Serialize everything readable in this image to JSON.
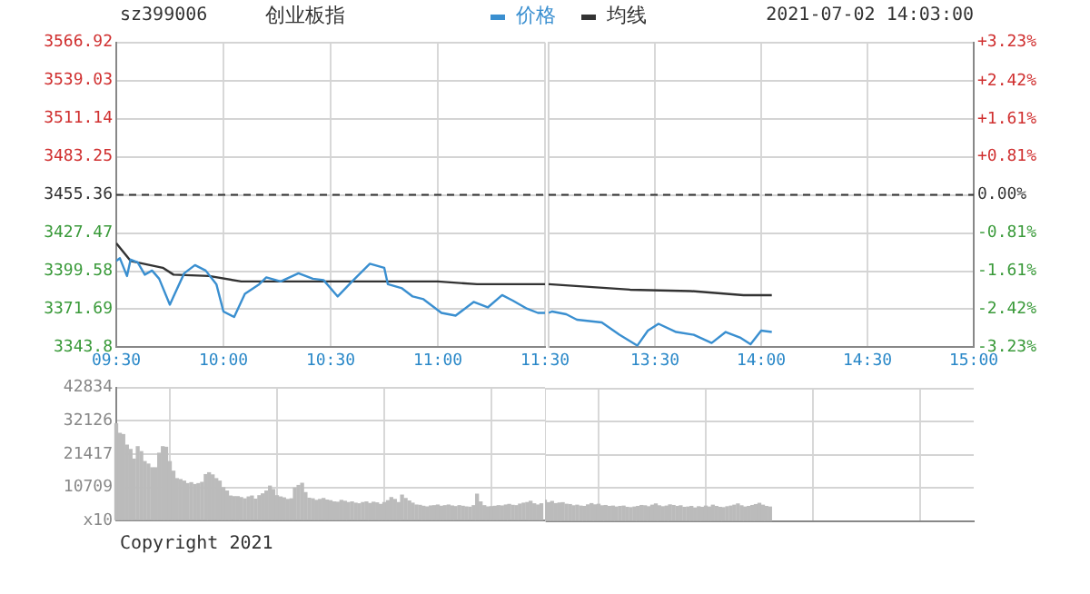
{
  "chart_data": [
    {
      "type": "line",
      "title": "创业板指",
      "subtitle": "sz399006",
      "annotations": [
        "2021-07-02 14:03:00"
      ],
      "xlim": [
        9.5,
        11.5
      ],
      "xticks": [
        {
          "value": 9.5,
          "label": "09:30"
        },
        {
          "value": 10,
          "label": "10:00"
        },
        {
          "value": 10.5,
          "label": "10:30"
        },
        {
          "value": 11,
          "label": "11:00"
        },
        {
          "value": 11.5,
          "label": "11:30"
        }
      ],
      "ylim": [
        3343.8,
        3566.92
      ],
      "yticks": [
        3343.8,
        3371.69,
        3399.58,
        3427.47,
        3455.36,
        3483.25,
        3511.14,
        3539.03,
        3566.92
      ],
      "ref_lines": [
        {
          "axis": "y",
          "value": 3455.36,
          "color": "#333333",
          "line_style": "dashed"
        }
      ],
      "grid": true,
      "legend": "top",
      "marker": "none",
      "series": [
        {
          "name": "价格",
          "color": "#3a8fd0",
          "x": [
            9.5,
            9.517,
            9.55,
            9.567,
            9.6,
            9.633,
            9.667,
            9.7,
            9.75,
            9.767,
            9.817,
            9.867,
            9.917,
            9.967,
            10,
            10.05,
            10.1,
            10.167,
            10.2,
            10.267,
            10.35,
            10.417,
            10.467,
            10.533,
            10.6,
            10.683,
            10.75,
            10.767,
            10.833,
            10.883,
            10.933,
            11.017,
            11.083,
            11.167,
            11.233,
            11.3,
            11.35,
            11.417,
            11.467,
            11.5
          ],
          "values": [
            3407,
            3409,
            3396,
            3408,
            3406,
            3397,
            3400,
            3394,
            3375,
            3381,
            3398,
            3404,
            3400,
            3390,
            3370,
            3366,
            3383,
            3390,
            3395,
            3392,
            3398,
            3394,
            3393,
            3381,
            3392,
            3405,
            3402,
            3390,
            3387,
            3381,
            3379,
            3369,
            3367,
            3377,
            3373,
            3382,
            3378,
            3372,
            3369,
            3369
          ]
        },
        {
          "name": "均线",
          "color": "#333333",
          "x": [
            9.5,
            9.567,
            9.717,
            9.767,
            9.933,
            10.083,
            11,
            11.183,
            11.467,
            11.5
          ],
          "values": [
            3420,
            3407,
            3402,
            3397,
            3396,
            3392,
            3392,
            3390,
            3390,
            3390
          ]
        }
      ]
    },
    {
      "type": "line",
      "tick_labels": "x",
      "xlim": [
        13,
        15
      ],
      "xticks": [
        {
          "value": 13,
          "label": null
        },
        {
          "value": 13.5,
          "label": "13:30"
        },
        {
          "value": 14,
          "label": "14:00"
        },
        {
          "value": 14.5,
          "label": "14:30"
        },
        {
          "value": 15,
          "label": "15:00"
        }
      ],
      "ylim": [
        3343.8,
        3566.92
      ],
      "yticks": [
        3343.8,
        3371.69,
        3399.58,
        3427.47,
        3455.36,
        3483.25,
        3511.14,
        3539.03,
        3566.92
      ],
      "y2lim": [
        -3.23,
        3.23
      ],
      "y2ticks": [
        {
          "value": -3.23,
          "label": "-3.23%"
        },
        {
          "value": -2.42,
          "label": "-2.42%"
        },
        {
          "value": -1.61,
          "label": "-1.61%"
        },
        {
          "value": -0.81,
          "label": "-0.81%"
        },
        {
          "value": 0,
          "label": "0.00%"
        },
        {
          "value": 0.81,
          "label": "+0.81%"
        },
        {
          "value": 1.61,
          "label": "+1.61%"
        },
        {
          "value": 2.42,
          "label": "+2.42%"
        },
        {
          "value": 3.23,
          "label": "+3.23%"
        }
      ],
      "ref_lines": [
        {
          "axis": "y",
          "value": 3455.36,
          "color": "#333333",
          "line_style": "dashed"
        }
      ],
      "grid": true,
      "marker": "none",
      "series": [
        {
          "color": "#3a8fd0",
          "x": [
            13,
            13.017,
            13.083,
            13.133,
            13.25,
            13.333,
            13.417,
            13.467,
            13.517,
            13.6,
            13.683,
            13.767,
            13.833,
            13.9,
            13.95,
            14,
            14.05
          ],
          "values": [
            3369,
            3370,
            3368,
            3364,
            3362,
            3353,
            3345,
            3356,
            3361,
            3355,
            3353,
            3347,
            3355,
            3351,
            3346,
            3356,
            3355
          ]
        },
        {
          "color": "#333333",
          "x": [
            13,
            13.383,
            13.667,
            13.917,
            14.05
          ],
          "values": [
            3390,
            3386,
            3385,
            3382,
            3382
          ]
        }
      ]
    },
    {
      "type": "bar",
      "annotations": [
        "Copyright 2021"
      ],
      "xlim": [
        9.5,
        11.5
      ],
      "tick_labels": "y",
      "grid": true,
      "color": "#bbbbbb",
      "xticks": [
        {
          "value": 9.5,
          "label": null
        },
        {
          "value": 10,
          "label": null
        },
        {
          "value": 10.5,
          "label": null
        },
        {
          "value": 11,
          "label": null
        },
        {
          "value": 11.5,
          "label": null
        }
      ],
      "ylim": [
        0,
        42834
      ],
      "yticks": [
        {
          "value": 0,
          "label": "x10"
        },
        10709,
        21417,
        32126,
        42834
      ],
      "x": [
        9.5,
        9.517,
        9.533,
        9.55,
        9.567,
        9.583,
        9.6,
        9.617,
        9.633,
        9.65,
        9.667,
        9.683,
        9.7,
        9.717,
        9.733,
        9.75,
        9.767,
        9.783,
        9.8,
        9.817,
        9.833,
        9.85,
        9.867,
        9.883,
        9.9,
        9.917,
        9.933,
        9.95,
        9.967,
        9.983,
        10,
        10.017,
        10.033,
        10.05,
        10.067,
        10.083,
        10.1,
        10.117,
        10.133,
        10.15,
        10.167,
        10.183,
        10.2,
        10.217,
        10.233,
        10.25,
        10.267,
        10.283,
        10.3,
        10.317,
        10.333,
        10.35,
        10.367,
        10.383,
        10.4,
        10.417,
        10.433,
        10.45,
        10.467,
        10.483,
        10.5,
        10.517,
        10.533,
        10.55,
        10.567,
        10.583,
        10.6,
        10.617,
        10.633,
        10.65,
        10.667,
        10.683,
        10.7,
        10.717,
        10.733,
        10.75,
        10.767,
        10.783,
        10.8,
        10.817,
        10.833,
        10.85,
        10.867,
        10.883,
        10.9,
        10.917,
        10.933,
        10.95,
        10.967,
        10.983,
        11,
        11.017,
        11.033,
        11.05,
        11.067,
        11.083,
        11.1,
        11.117,
        11.133,
        11.15,
        11.167,
        11.183,
        11.2,
        11.217,
        11.233,
        11.25,
        11.267,
        11.283,
        11.3,
        11.317,
        11.333,
        11.35,
        11.367,
        11.383,
        11.4,
        11.417,
        11.433,
        11.45,
        11.467,
        11.483
      ],
      "values": [
        31200,
        28100,
        27700,
        24300,
        22900,
        19800,
        23800,
        22200,
        19000,
        18200,
        17000,
        17000,
        21700,
        23800,
        23600,
        19000,
        15900,
        13500,
        13200,
        12700,
        11900,
        12200,
        11600,
        11900,
        12300,
        14800,
        15400,
        14700,
        13500,
        12700,
        10600,
        9500,
        7900,
        7700,
        7700,
        7400,
        7000,
        7600,
        7900,
        6900,
        8000,
        8600,
        9500,
        11100,
        10000,
        8000,
        7600,
        7300,
        6800,
        7000,
        10500,
        11300,
        12000,
        9000,
        7200,
        7000,
        6500,
        6800,
        7100,
        6600,
        6400,
        6000,
        5900,
        6500,
        6200,
        5800,
        6000,
        5600,
        5400,
        5800,
        6000,
        5500,
        5900,
        5700,
        5200,
        5800,
        6400,
        7400,
        6800,
        5800,
        8200,
        7100,
        6300,
        5600,
        5000,
        4900,
        4600,
        4400,
        4700,
        4800,
        5000,
        4600,
        4800,
        5000,
        4700,
        4500,
        4800,
        4600,
        4400,
        4300,
        4800,
        8500,
        6000,
        4800,
        4400,
        4500,
        4600,
        4800,
        4700,
        5000,
        5200,
        4900,
        4800,
        5300,
        5600,
        5800,
        6200,
        5400,
        5000,
        5400
      ]
    },
    {
      "type": "bar",
      "tick_labels": false,
      "grid": true,
      "color": "#bbbbbb",
      "xlim": [
        13,
        15
      ],
      "xticks": [
        {
          "value": 13,
          "label": null
        },
        {
          "value": 13.5,
          "label": null
        },
        {
          "value": 14,
          "label": null
        },
        {
          "value": 14.5,
          "label": null
        },
        {
          "value": 15,
          "label": null
        }
      ],
      "ylim": [
        0,
        42834
      ],
      "yticks": [
        {
          "value": 0,
          "label": null
        },
        {
          "value": 10709,
          "label": null
        },
        {
          "value": 21417,
          "label": null
        },
        {
          "value": 32126,
          "label": null
        },
        {
          "value": 42834,
          "label": null
        }
      ],
      "x": [
        13,
        13.017,
        13.033,
        13.05,
        13.067,
        13.083,
        13.1,
        13.117,
        13.133,
        13.15,
        13.167,
        13.183,
        13.2,
        13.217,
        13.233,
        13.25,
        13.267,
        13.283,
        13.3,
        13.317,
        13.333,
        13.35,
        13.367,
        13.383,
        13.4,
        13.417,
        13.433,
        13.45,
        13.467,
        13.483,
        13.5,
        13.517,
        13.533,
        13.55,
        13.567,
        13.583,
        13.6,
        13.617,
        13.633,
        13.65,
        13.667,
        13.683,
        13.7,
        13.717,
        13.733,
        13.75,
        13.767,
        13.783,
        13.8,
        13.817,
        13.833,
        13.85,
        13.867,
        13.883,
        13.9,
        13.917,
        13.933,
        13.95,
        13.967,
        13.983,
        14,
        14.017,
        14.033,
        14.05
      ],
      "values": [
        6800,
        6000,
        6400,
        5700,
        5900,
        6000,
        5500,
        5400,
        5000,
        5200,
        4900,
        4800,
        5300,
        5700,
        5300,
        5500,
        5000,
        5100,
        4800,
        4900,
        4600,
        4800,
        4900,
        4500,
        4400,
        4600,
        4800,
        5100,
        5000,
        4700,
        5200,
        5600,
        5000,
        4700,
        4900,
        5300,
        5100,
        4800,
        5000,
        4500,
        4600,
        4800,
        4300,
        4700,
        4500,
        4900,
        4600,
        5200,
        4800,
        4500,
        4400,
        4700,
        4900,
        5200,
        5600,
        5000,
        4600,
        4800,
        5100,
        5400,
        5800,
        5200,
        4800,
        4600
      ]
    }
  ]
}
